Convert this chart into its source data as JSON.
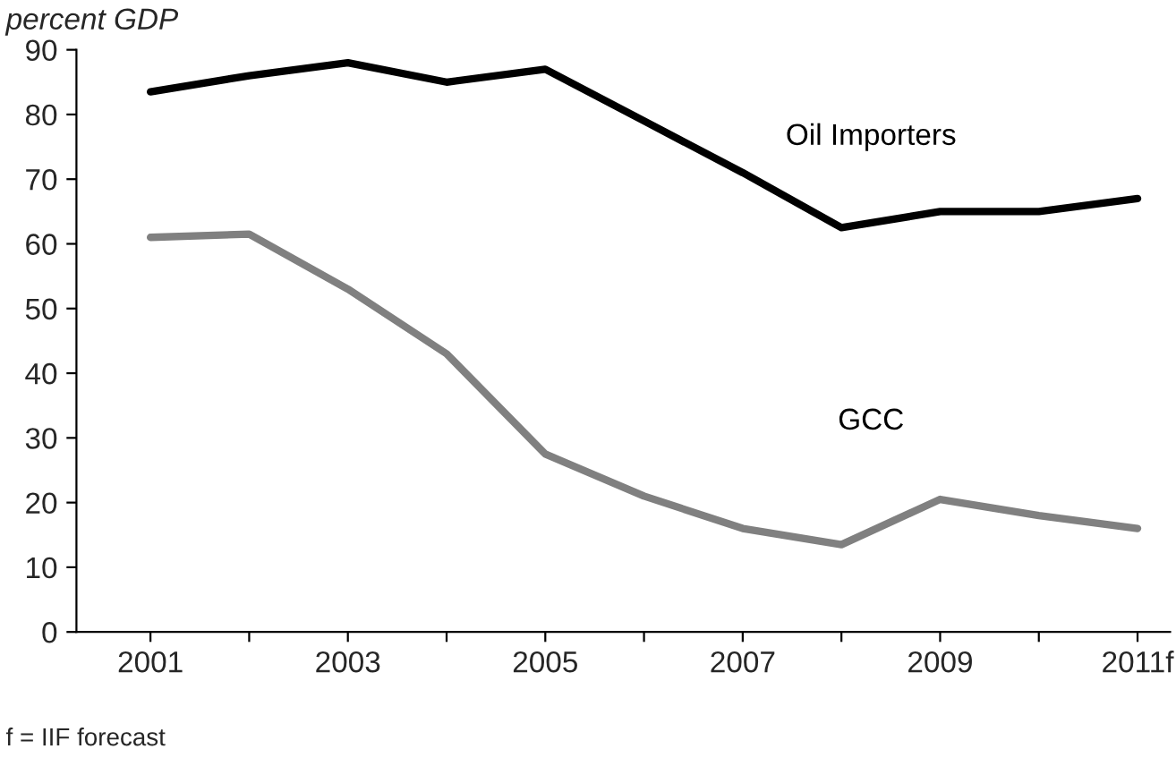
{
  "chart_data": {
    "type": "line",
    "ylabel": "percent GDP",
    "categories": [
      "2001",
      null,
      "2003",
      null,
      "2005",
      null,
      "2007",
      null,
      "2009",
      null,
      "2011f"
    ],
    "series": [
      {
        "name": "Oil Importers",
        "color": "#000000",
        "values": [
          83.5,
          86,
          88,
          85,
          87,
          79,
          71,
          62.5,
          65,
          65,
          67
        ]
      },
      {
        "name": "GCC",
        "color": "#808080",
        "values": [
          61,
          61.5,
          53,
          43,
          27.5,
          21,
          16,
          13.5,
          20.5,
          18,
          16
        ]
      }
    ],
    "ylim": [
      0,
      90
    ],
    "yticks": [
      0,
      10,
      20,
      30,
      40,
      50,
      60,
      70,
      80,
      90
    ],
    "grid": false,
    "legend": false,
    "marker": "none",
    "line_style": "solid",
    "annotations": [
      "f = IIF forecast"
    ]
  }
}
